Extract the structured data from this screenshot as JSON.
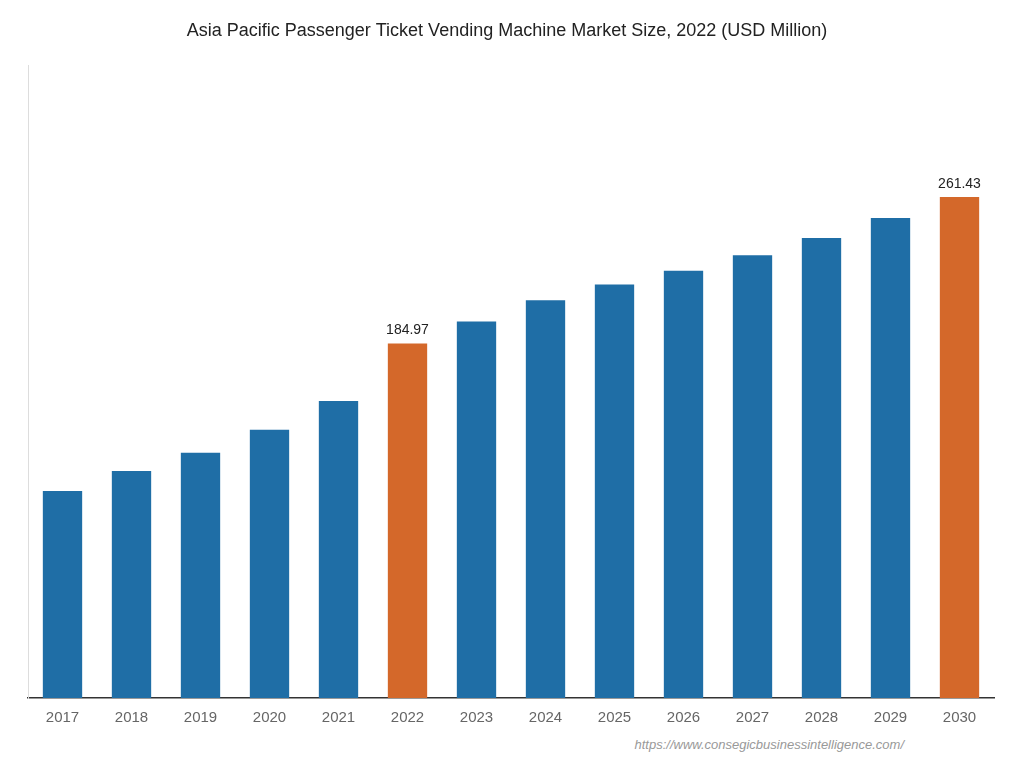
{
  "chart_data": {
    "type": "bar",
    "title": "Asia Pacific Passenger Ticket Vending Machine Market Size, 2022 (USD Million)",
    "categories": [
      "2017",
      "2018",
      "2019",
      "2020",
      "2021",
      "2022",
      "2023",
      "2024",
      "2025",
      "2026",
      "2027",
      "2028",
      "2029",
      "2030"
    ],
    "values": [
      108.0,
      118.5,
      128.0,
      140.0,
      155.0,
      184.97,
      196.5,
      207.5,
      215.8,
      223.0,
      231.0,
      240.0,
      250.5,
      261.43
    ],
    "value_labels": [
      null,
      null,
      null,
      null,
      null,
      "184.97",
      null,
      null,
      null,
      null,
      null,
      null,
      null,
      "261.43"
    ],
    "colors": [
      "#1f6ea6",
      "#1f6ea6",
      "#1f6ea6",
      "#1f6ea6",
      "#1f6ea6",
      "#d4682a",
      "#1f6ea6",
      "#1f6ea6",
      "#1f6ea6",
      "#1f6ea6",
      "#1f6ea6",
      "#1f6ea6",
      "#1f6ea6",
      "#d4682a"
    ],
    "ylim": [
      0,
      330
    ],
    "tick_labels": "x",
    "grid": false,
    "annotations": [
      "https://www.consegicbusinessintelligence.com/"
    ]
  }
}
